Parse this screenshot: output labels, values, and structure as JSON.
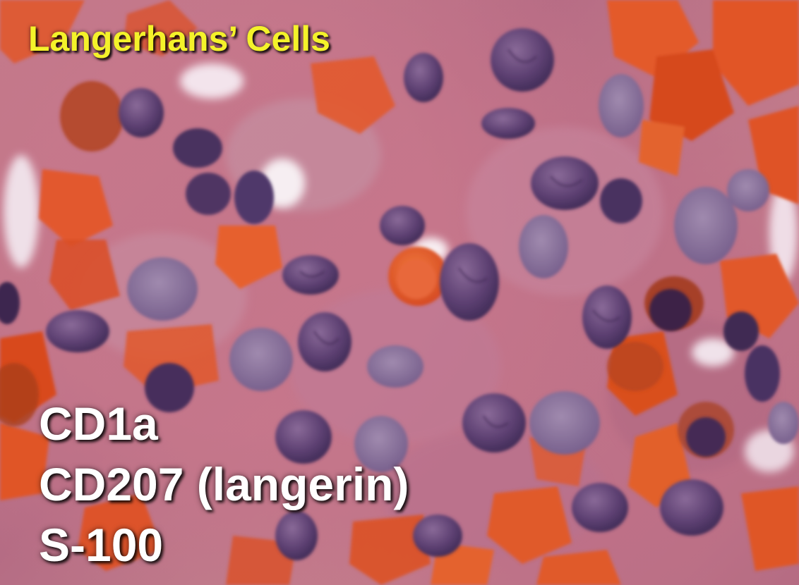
{
  "slide": {
    "title": "Langerhans’ Cells",
    "markers": [
      "CD1a",
      "CD207 (langerin)",
      "S-100"
    ]
  },
  "colors": {
    "title_text": "#f4f22a",
    "marker_text": "#ffffff",
    "cytoplasm": "#c07a8c",
    "nucleus": "#5a3f6e",
    "red_blood_cell": "#e0522a",
    "eosinophil_granule": "#c8421f"
  }
}
